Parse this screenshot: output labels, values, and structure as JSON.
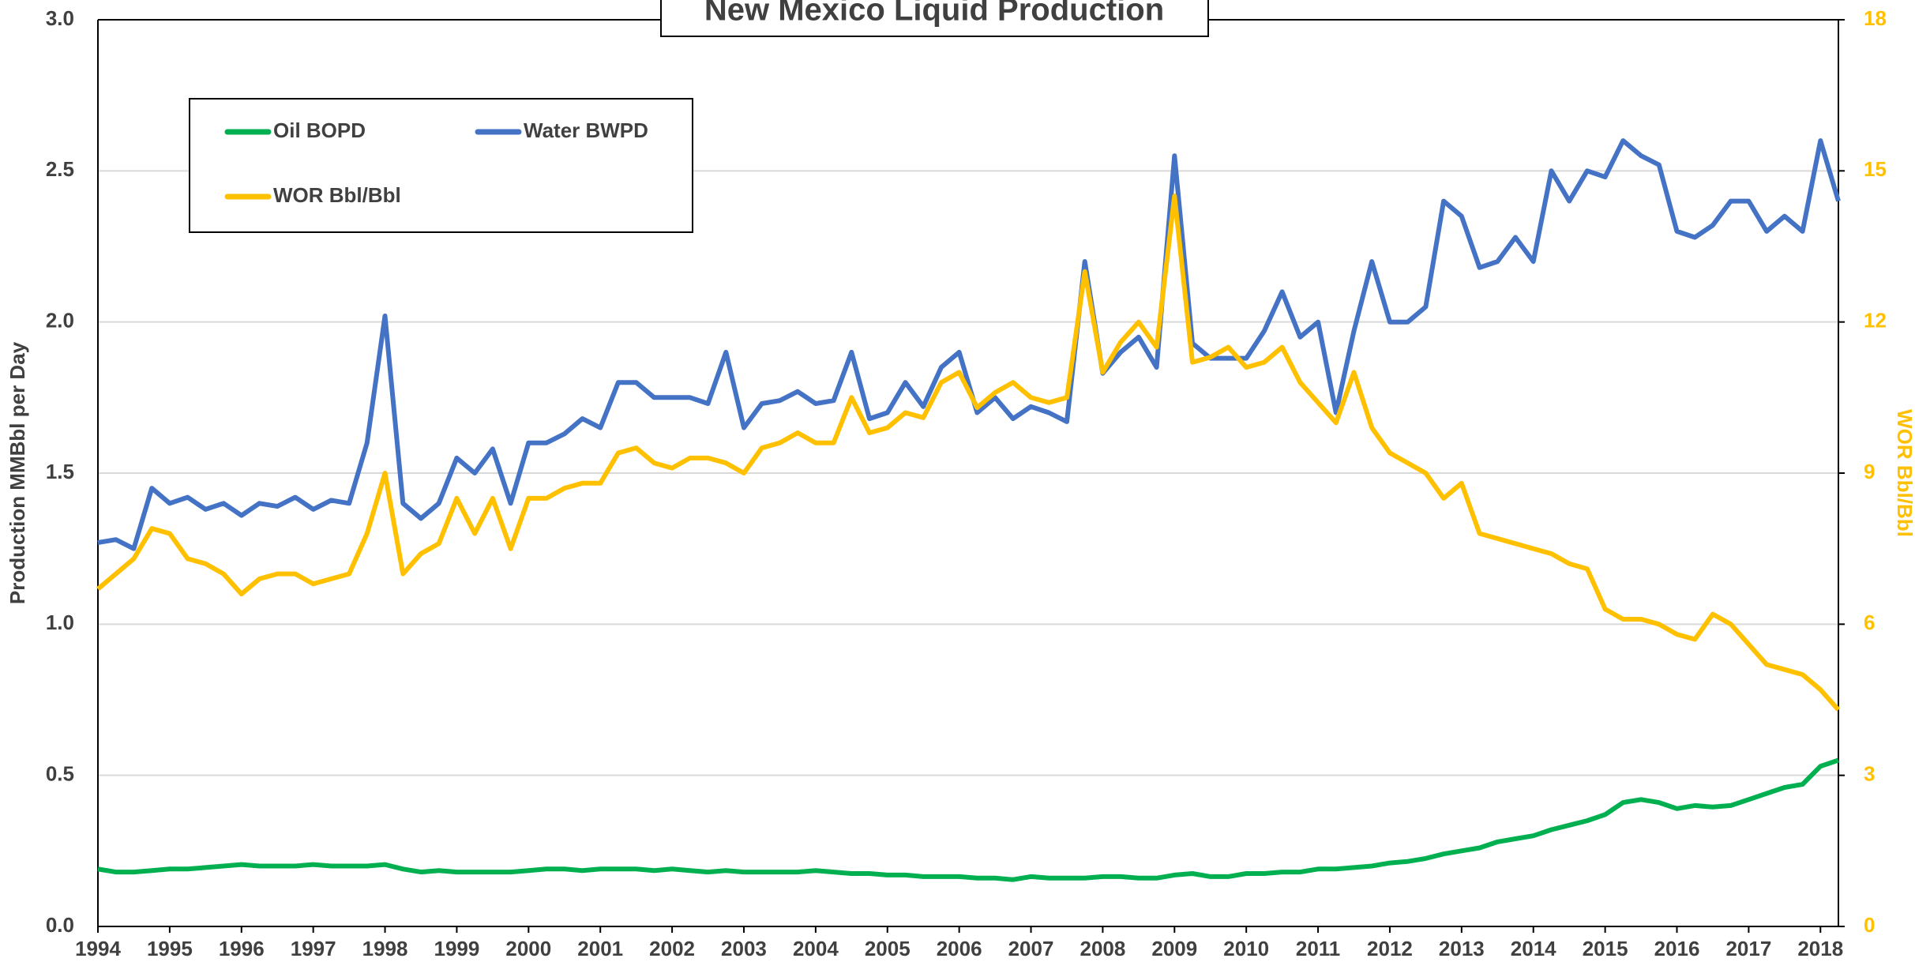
{
  "chart_data": {
    "type": "line",
    "title": "New Mexico Liquid Production",
    "ylabel": "Production MMBbl per Day",
    "y2label": "WOR Bbl/Bbl",
    "xlim": [
      1994,
      2018.25
    ],
    "xticks": [
      1994,
      1995,
      1996,
      1997,
      1998,
      1999,
      2000,
      2001,
      2002,
      2003,
      2004,
      2005,
      2006,
      2007,
      2008,
      2009,
      2010,
      2011,
      2012,
      2013,
      2014,
      2015,
      2016,
      2017,
      2018
    ],
    "ylim": [
      0,
      3
    ],
    "yticks": [
      {
        "value": 0,
        "label": "0.0"
      },
      0.5,
      {
        "value": 1,
        "label": "1.0"
      },
      1.5,
      {
        "value": 2,
        "label": "2.0"
      },
      2.5,
      {
        "value": 3,
        "label": "3.0"
      }
    ],
    "y2lim": [
      0,
      18
    ],
    "y2ticks": [
      0,
      3,
      6,
      9,
      12,
      15,
      18
    ],
    "grid": true,
    "legend": "upper left",
    "x": [
      1994,
      1994.25,
      1994.5,
      1994.75,
      1995,
      1995.25,
      1995.5,
      1995.75,
      1996,
      1996.25,
      1996.5,
      1996.75,
      1997,
      1997.25,
      1997.5,
      1997.75,
      1998,
      1998.25,
      1998.5,
      1998.75,
      1999,
      1999.25,
      1999.5,
      1999.75,
      2000,
      2000.25,
      2000.5,
      2000.75,
      2001,
      2001.25,
      2001.5,
      2001.75,
      2002,
      2002.25,
      2002.5,
      2002.75,
      2003,
      2003.25,
      2003.5,
      2003.75,
      2004,
      2004.25,
      2004.5,
      2004.75,
      2005,
      2005.25,
      2005.5,
      2005.75,
      2006,
      2006.25,
      2006.5,
      2006.75,
      2007,
      2007.25,
      2007.5,
      2007.75,
      2008,
      2008.25,
      2008.5,
      2008.75,
      2009,
      2009.25,
      2009.5,
      2009.75,
      2010,
      2010.25,
      2010.5,
      2010.75,
      2011,
      2011.25,
      2011.5,
      2011.75,
      2012,
      2012.25,
      2012.5,
      2012.75,
      2013,
      2013.25,
      2013.5,
      2013.75,
      2014,
      2014.25,
      2014.5,
      2014.75,
      2015,
      2015.25,
      2015.5,
      2015.75,
      2016,
      2016.25,
      2016.5,
      2016.75,
      2017,
      2017.25,
      2017.5,
      2017.75,
      2018,
      2018.25
    ],
    "series": [
      {
        "name": "Oil BOPD",
        "color": "#00b050",
        "values": [
          0.19,
          0.18,
          0.18,
          0.185,
          0.19,
          0.19,
          0.195,
          0.2,
          0.205,
          0.2,
          0.2,
          0.2,
          0.205,
          0.2,
          0.2,
          0.2,
          0.205,
          0.19,
          0.18,
          0.185,
          0.18,
          0.18,
          0.18,
          0.18,
          0.185,
          0.19,
          0.19,
          0.185,
          0.19,
          0.19,
          0.19,
          0.185,
          0.19,
          0.185,
          0.18,
          0.185,
          0.18,
          0.18,
          0.18,
          0.18,
          0.185,
          0.18,
          0.175,
          0.175,
          0.17,
          0.17,
          0.165,
          0.165,
          0.165,
          0.16,
          0.16,
          0.155,
          0.165,
          0.16,
          0.16,
          0.16,
          0.165,
          0.165,
          0.16,
          0.16,
          0.17,
          0.175,
          0.165,
          0.165,
          0.175,
          0.175,
          0.18,
          0.18,
          0.19,
          0.19,
          0.195,
          0.2,
          0.21,
          0.215,
          0.225,
          0.24,
          0.25,
          0.26,
          0.28,
          0.29,
          0.3,
          0.32,
          0.335,
          0.35,
          0.37,
          0.41,
          0.42,
          0.41,
          0.39,
          0.4,
          0.395,
          0.4,
          0.42,
          0.44,
          0.46,
          0.47,
          0.53,
          0.55
        ]
      },
      {
        "name": "Water BWPD",
        "color": "#4472c4",
        "values": [
          1.27,
          1.28,
          1.25,
          1.45,
          1.4,
          1.42,
          1.38,
          1.4,
          1.36,
          1.4,
          1.39,
          1.42,
          1.38,
          1.41,
          1.4,
          1.6,
          2.02,
          1.4,
          1.35,
          1.4,
          1.55,
          1.5,
          1.58,
          1.4,
          1.6,
          1.6,
          1.63,
          1.68,
          1.65,
          1.8,
          1.8,
          1.75,
          1.75,
          1.75,
          1.73,
          1.9,
          1.65,
          1.73,
          1.74,
          1.77,
          1.73,
          1.74,
          1.9,
          1.68,
          1.7,
          1.8,
          1.72,
          1.85,
          1.9,
          1.7,
          1.75,
          1.68,
          1.72,
          1.7,
          1.67,
          2.2,
          1.83,
          1.9,
          1.95,
          1.85,
          2.55,
          1.93,
          1.88,
          1.88,
          1.88,
          1.97,
          2.1,
          1.95,
          2.0,
          1.7,
          1.97,
          2.2,
          2.0,
          2.0,
          2.05,
          2.4,
          2.35,
          2.18,
          2.2,
          2.28,
          2.2,
          2.5,
          2.4,
          2.5,
          2.48,
          2.6,
          2.55,
          2.52,
          2.3,
          2.28,
          2.32,
          2.4,
          2.4,
          2.3,
          2.35,
          2.3,
          2.6,
          2.4
        ]
      },
      {
        "name": "WOR Bbl/Bbl",
        "color": "#ffc000",
        "axis": "y2",
        "values": [
          6.7,
          7.0,
          7.3,
          7.9,
          7.8,
          7.3,
          7.2,
          7.0,
          6.6,
          6.9,
          7.0,
          7.0,
          6.8,
          6.9,
          7.0,
          7.8,
          9.0,
          7.0,
          7.4,
          7.6,
          8.5,
          7.8,
          8.5,
          7.5,
          8.5,
          8.5,
          8.7,
          8.8,
          8.8,
          9.4,
          9.5,
          9.2,
          9.1,
          9.3,
          9.3,
          9.2,
          9.0,
          9.5,
          9.6,
          9.8,
          9.6,
          9.6,
          10.5,
          9.8,
          9.9,
          10.2,
          10.1,
          10.8,
          11.0,
          10.3,
          10.6,
          10.8,
          10.5,
          10.4,
          10.5,
          13.0,
          11.0,
          11.6,
          12.0,
          11.5,
          14.5,
          11.2,
          11.3,
          11.5,
          11.1,
          11.2,
          11.5,
          10.8,
          10.4,
          10.0,
          11.0,
          9.9,
          9.4,
          9.2,
          9.0,
          8.5,
          8.8,
          7.8,
          7.7,
          7.6,
          7.5,
          7.4,
          7.2,
          7.1,
          6.3,
          6.1,
          6.1,
          6.0,
          5.8,
          5.7,
          6.2,
          6.0,
          5.6,
          5.2,
          5.1,
          5.0,
          4.7,
          4.3
        ]
      }
    ]
  }
}
